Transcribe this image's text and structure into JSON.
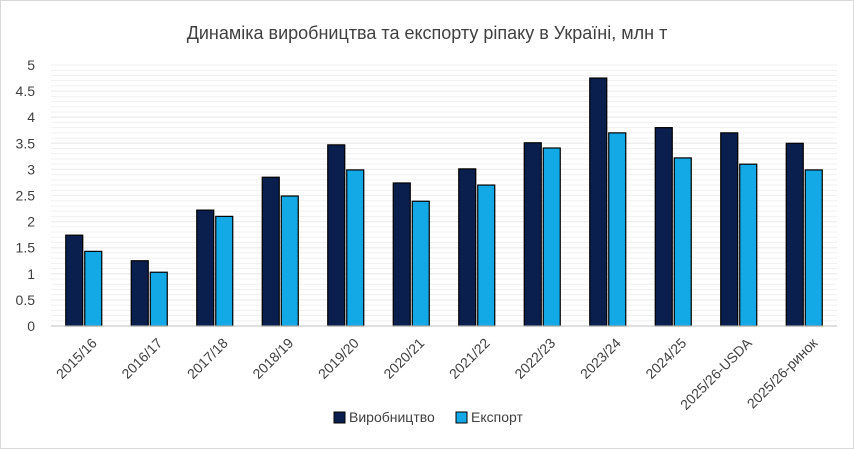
{
  "chart_data": {
    "type": "bar",
    "title": "Динаміка виробництва та експорту ріпаку в Україні, млн т",
    "xlabel": "",
    "ylabel": "",
    "categories": [
      "2015/16",
      "2016/17",
      "2017/18",
      "2018/19",
      "2019/20",
      "2020/21",
      "2021/22",
      "2022/23",
      "2023/24",
      "2024/25",
      "2025/26-USDA",
      "2025/26-ринок"
    ],
    "series": [
      {
        "name": "Виробництво",
        "color": "#0b1f4f",
        "values": [
          1.74,
          1.25,
          2.22,
          2.85,
          3.47,
          2.74,
          3.01,
          3.51,
          4.75,
          3.8,
          3.7,
          3.5
        ]
      },
      {
        "name": "Експорт",
        "color": "#12a9e6",
        "values": [
          1.43,
          1.03,
          2.1,
          2.49,
          2.99,
          2.39,
          2.7,
          3.41,
          3.7,
          3.22,
          3.1,
          2.99
        ]
      }
    ],
    "ylim": [
      0,
      5
    ],
    "yticks": [
      "0",
      "0.5",
      "1",
      "1.5",
      "2",
      "2.5",
      "3",
      "3.5",
      "4",
      "4.5",
      "5"
    ],
    "grid": true,
    "legend_position": "bottom"
  }
}
